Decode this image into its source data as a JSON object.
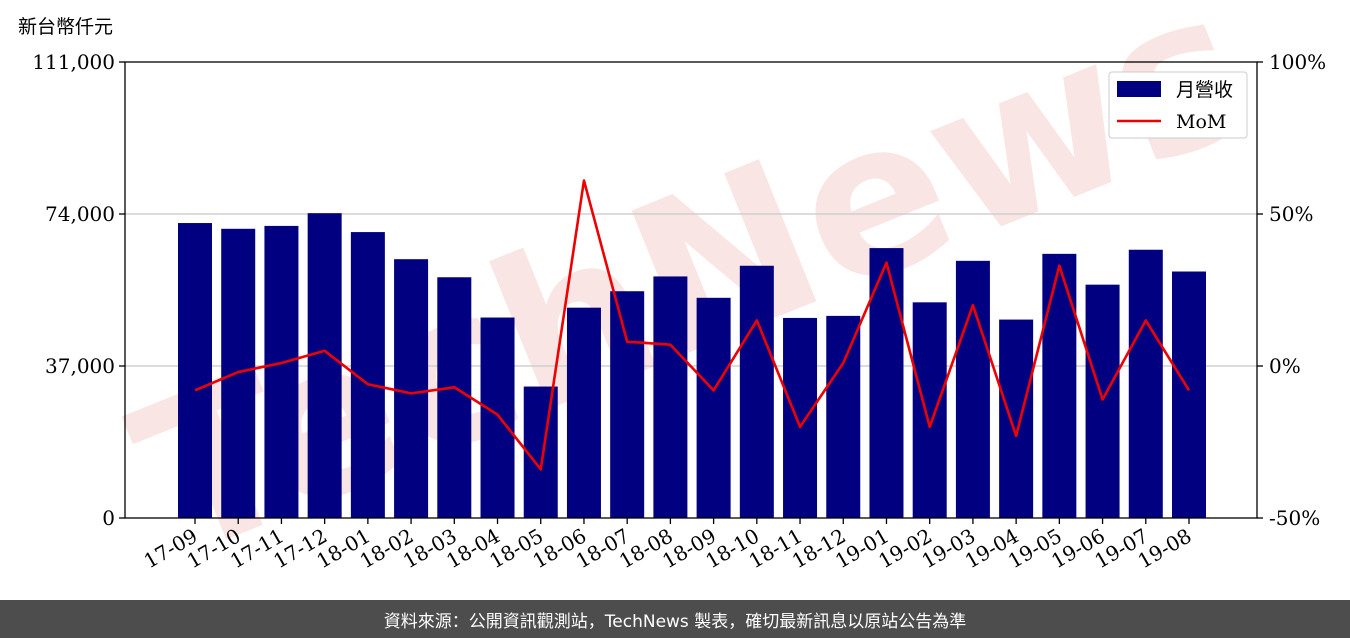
{
  "watermark": "TechNews",
  "footer": {
    "source": "資料來源：公開資訊觀測站，TechNews 製表，確切最新訊息以原站公告為準"
  },
  "chart_data": {
    "type": "bar+line",
    "categories": [
      "17-09",
      "17-10",
      "17-11",
      "17-12",
      "18-01",
      "18-02",
      "18-03",
      "18-04",
      "18-05",
      "18-06",
      "18-07",
      "18-08",
      "18-09",
      "18-10",
      "18-11",
      "18-12",
      "19-01",
      "19-02",
      "19-03",
      "19-04",
      "19-05",
      "19-06",
      "19-07",
      "19-08"
    ],
    "y_left": {
      "label": "新台幣仟元",
      "ylim": [
        0,
        111000
      ],
      "ticks": [
        0,
        37000,
        74000,
        111000
      ],
      "tick_labels": [
        "0",
        "37,000",
        "74,000",
        "111,000"
      ]
    },
    "y_right": {
      "ylim": [
        -50,
        100
      ],
      "ticks": [
        -50,
        0,
        50,
        100
      ],
      "tick_labels": [
        "-50%",
        "0%",
        "50%",
        "100%"
      ]
    },
    "grid": "horizontal",
    "legend_position": "top-right",
    "series": [
      {
        "name": "月營收",
        "kind": "bar",
        "axis": "left",
        "color": "#000080",
        "values": [
          71800,
          70400,
          71100,
          74200,
          69600,
          63000,
          58600,
          48800,
          32000,
          51200,
          55200,
          58800,
          53600,
          61400,
          48700,
          49200,
          65700,
          52500,
          62600,
          48300,
          64300,
          56800,
          65300,
          60000
        ]
      },
      {
        "name": "MoM",
        "kind": "line",
        "axis": "right",
        "color": "#ee0000",
        "values": [
          -8,
          -2,
          1,
          5,
          -6,
          -9,
          -7,
          -16,
          -34,
          61,
          8,
          7,
          -8,
          15,
          -20,
          1,
          34,
          -20,
          20,
          -23,
          33,
          -11,
          15,
          -8
        ]
      }
    ]
  }
}
